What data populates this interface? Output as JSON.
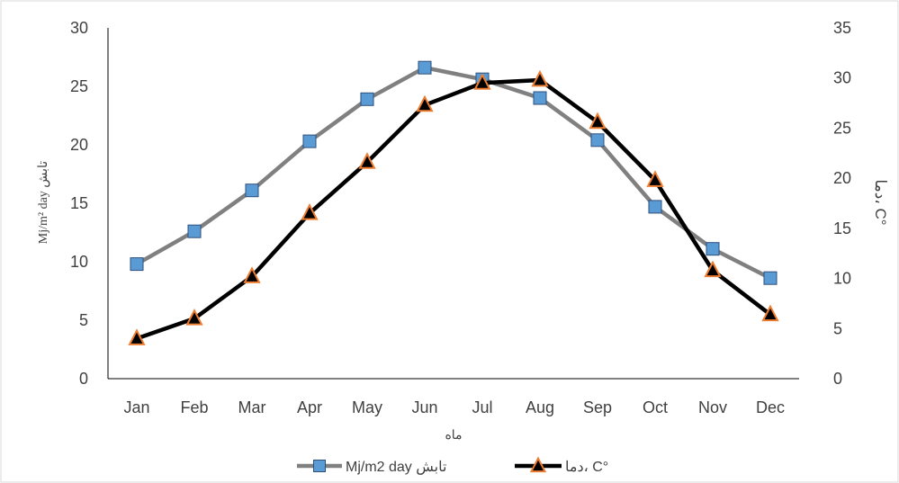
{
  "chart_data": {
    "type": "line",
    "categories": [
      "Jan",
      "Feb",
      "Mar",
      "Apr",
      "May",
      "Jun",
      "Jul",
      "Aug",
      "Sep",
      "Oct",
      "Nov",
      "Dec"
    ],
    "series": [
      {
        "name": "Mj/m2 day  تابش",
        "axis": "left",
        "color": "#808080",
        "marker": "square",
        "marker_color": "#5B9BD5",
        "values": [
          9.8,
          12.6,
          16.1,
          20.3,
          23.9,
          26.6,
          25.6,
          24.0,
          20.4,
          14.7,
          11.1,
          8.6
        ]
      },
      {
        "name": "دما، C°",
        "axis": "right",
        "color": "#000000",
        "marker": "triangle",
        "marker_color": "#ED7D31",
        "values": [
          4.0,
          6.0,
          10.2,
          16.5,
          21.6,
          27.3,
          29.5,
          29.8,
          25.6,
          19.8,
          10.8,
          6.4
        ]
      }
    ],
    "xlabel": "ماه",
    "ylabel_left": "Mj/m² day  تابش",
    "ylabel_right": "دما، C°",
    "ylim_left": [
      0,
      30
    ],
    "ylim_right": [
      0,
      35
    ],
    "yticks_left": [
      0,
      5,
      10,
      15,
      20,
      25,
      30
    ],
    "yticks_right": [
      0,
      5,
      10,
      15,
      20,
      25,
      30,
      35
    ],
    "grid": false,
    "legend_position": "bottom"
  }
}
